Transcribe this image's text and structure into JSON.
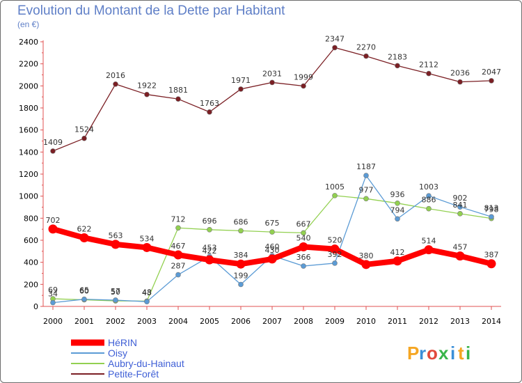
{
  "title": "Evolution du Montant de la Dette par Habitant",
  "subtitle": "(en €)",
  "brand": {
    "letters": [
      "P",
      "r",
      "o",
      "x",
      "i",
      "t",
      "i"
    ],
    "colors": [
      "#f5a623",
      "#3b8fd8",
      "#e14a3b",
      "#39b54a",
      "#3b8fd8",
      "#f5a623",
      "#39b54a"
    ]
  },
  "chart_data": {
    "type": "line",
    "x": [
      "2000",
      "2001",
      "2002",
      "2003",
      "2004",
      "2005",
      "2006",
      "2007",
      "2008",
      "2009",
      "2010",
      "2011",
      "2012",
      "2013",
      "2014"
    ],
    "ylim": [
      0,
      2400
    ],
    "yticks": [
      0,
      200,
      400,
      600,
      800,
      1000,
      1200,
      1400,
      1600,
      1800,
      2000,
      2200,
      2400
    ],
    "grid": false,
    "legend_position": "bottom-left",
    "series": [
      {
        "name": "HéRIN",
        "color": "#ff0000",
        "values": [
          702,
          622,
          563,
          534,
          467,
          422,
          384,
          430,
          540,
          520,
          380,
          412,
          514,
          457,
          387
        ]
      },
      {
        "name": "Oisy",
        "color": "#5b9bd5",
        "values": [
          34,
          65,
          57,
          43,
          287,
          453,
          199,
          460,
          366,
          392,
          1187,
          794,
          1003,
          902,
          813
        ]
      },
      {
        "name": "Aubry-du-Hainaut",
        "color": "#92d050",
        "values": [
          69,
          60,
          50,
          48,
          712,
          696,
          686,
          675,
          667,
          1005,
          977,
          936,
          886,
          841,
          798
        ]
      },
      {
        "name": "Petite-Forêt",
        "color": "#7b1f24",
        "values": [
          1409,
          1524,
          2016,
          1922,
          1881,
          1763,
          1971,
          2031,
          1999,
          2347,
          2270,
          2183,
          2112,
          2036,
          2047
        ]
      }
    ]
  }
}
